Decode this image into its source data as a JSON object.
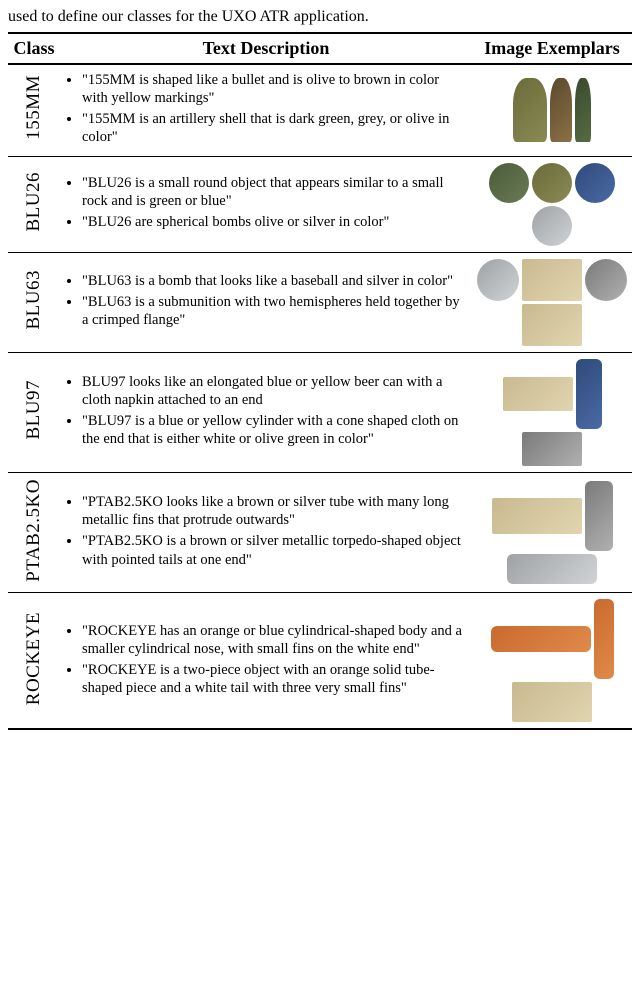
{
  "caption": "used to define our classes for the UXO ATR application.",
  "headers": {
    "class": "Class",
    "desc": "Text Description",
    "img": "Image Exemplars"
  },
  "rows": [
    {
      "class_label": "155MM",
      "bullets": [
        "\"155MM is shaped like a bullet and is olive to brown in color with yellow markings\"",
        "\"155MM is an artillery shell that is dark green, grey, or olive in color\""
      ],
      "exemplars": [
        {
          "w": 34,
          "h": 64,
          "cls": "sw-olive bullet-sh"
        },
        {
          "w": 22,
          "h": 64,
          "cls": "sw-brown bullet-sh"
        },
        {
          "w": 16,
          "h": 64,
          "cls": "sw-darkgr bullet-sh"
        }
      ]
    },
    {
      "class_label": "BLU26",
      "bullets": [
        "\"BLU26 is a small round object that appears similar to a small rock and is green or blue\"",
        "\"BLU26 are spherical bombs olive or silver in color\""
      ],
      "exemplars": [
        {
          "w": 40,
          "h": 40,
          "cls": "sw-green round-sh"
        },
        {
          "w": 40,
          "h": 40,
          "cls": "sw-olive round-sh"
        },
        {
          "w": 40,
          "h": 40,
          "cls": "sw-blue round-sh"
        },
        {
          "w": 40,
          "h": 40,
          "cls": "sw-silver round-sh"
        }
      ]
    },
    {
      "class_label": "BLU63",
      "bullets": [
        "\"BLU63 is a bomb that looks like a baseball and silver in color\"",
        "\"BLU63 is a submunition with two hemispheres held together by a crimped flange\""
      ],
      "exemplars": [
        {
          "w": 42,
          "h": 42,
          "cls": "sw-silver round-sh"
        },
        {
          "w": 60,
          "h": 42,
          "cls": "sw-sand"
        },
        {
          "w": 42,
          "h": 42,
          "cls": "sw-grey round-sh"
        },
        {
          "w": 60,
          "h": 42,
          "cls": "sw-sand"
        }
      ]
    },
    {
      "class_label": "BLU97",
      "bullets": [
        "BLU97 looks like an elongated blue or yellow beer can with a cloth napkin attached to an end",
        "\"BLU97 is a blue or yellow cylinder with a cone shaped cloth on the end that is either white or olive green in color\""
      ],
      "exemplars": [
        {
          "w": 70,
          "h": 34,
          "cls": "sw-sand"
        },
        {
          "w": 26,
          "h": 70,
          "cls": "sw-blue tube-sh"
        },
        {
          "w": 60,
          "h": 34,
          "cls": "sw-grey"
        }
      ]
    },
    {
      "class_label": "PTAB2.5KO",
      "bullets": [
        "\"PTAB2.5KO looks like a brown or silver tube with many long metallic fins that protrude outwards\"",
        "\"PTAB2.5KO is a brown or silver metallic torpedo-shaped object with pointed tails at one end\""
      ],
      "exemplars": [
        {
          "w": 90,
          "h": 36,
          "cls": "sw-sand"
        },
        {
          "w": 28,
          "h": 70,
          "cls": "sw-grey tube-sh"
        },
        {
          "w": 90,
          "h": 30,
          "cls": "sw-silver tube-sh"
        }
      ]
    },
    {
      "class_label": "ROCKEYE",
      "bullets": [
        "\"ROCKEYE has an orange or blue cylindrical-shaped body and a smaller cylindrical nose, with small fins on the white end\"",
        "\"ROCKEYE is a two-piece object with an orange solid tube-shaped piece and a white tail with three very small fins\""
      ],
      "exemplars": [
        {
          "w": 100,
          "h": 26,
          "cls": "sw-orange tube-sh"
        },
        {
          "w": 20,
          "h": 80,
          "cls": "sw-orange tube-sh"
        },
        {
          "w": 80,
          "h": 40,
          "cls": "sw-sand"
        }
      ]
    }
  ],
  "colors": {
    "text": "#000000",
    "bg": "#ffffff",
    "rule": "#000000"
  }
}
